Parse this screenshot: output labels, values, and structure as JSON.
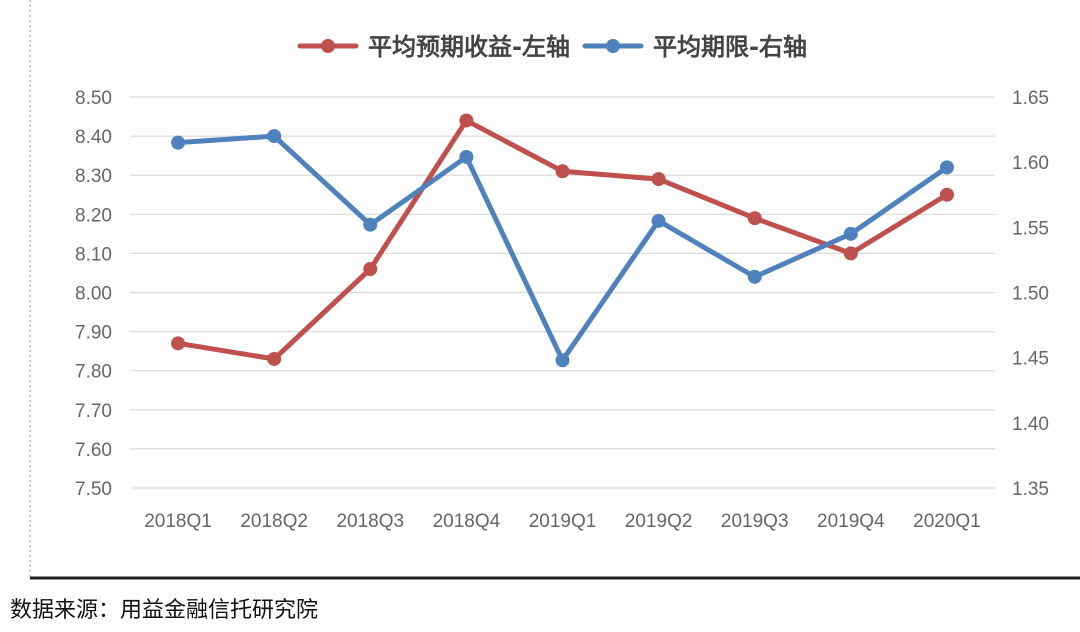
{
  "source_note": "数据来源：用益金融信托研究院",
  "chart_data": {
    "type": "line",
    "categories": [
      "2018Q1",
      "2018Q2",
      "2018Q3",
      "2018Q4",
      "2019Q1",
      "2019Q2",
      "2019Q3",
      "2019Q4",
      "2020Q1"
    ],
    "left_axis": {
      "range": [
        7.5,
        8.5
      ],
      "ticks": [
        "8.50",
        "8.40",
        "8.30",
        "8.20",
        "8.10",
        "8.00",
        "7.90",
        "7.80",
        "7.70",
        "7.60",
        "7.50"
      ]
    },
    "right_axis": {
      "range": [
        1.35,
        1.65
      ],
      "ticks": [
        "1.65",
        "1.60",
        "1.55",
        "1.50",
        "1.45",
        "1.40",
        "1.35"
      ]
    },
    "grid": true,
    "legend_position": "top",
    "series": [
      {
        "name": "平均预期收益-左轴",
        "axis": "left",
        "color": "#c0504d",
        "values": [
          7.87,
          7.83,
          8.06,
          8.44,
          8.31,
          8.29,
          8.19,
          8.1,
          8.25
        ]
      },
      {
        "name": "平均期限-右轴",
        "axis": "right",
        "color": "#4f81bd",
        "values": [
          1.615,
          1.62,
          1.552,
          1.604,
          1.448,
          1.555,
          1.512,
          1.545,
          1.596
        ]
      }
    ]
  }
}
